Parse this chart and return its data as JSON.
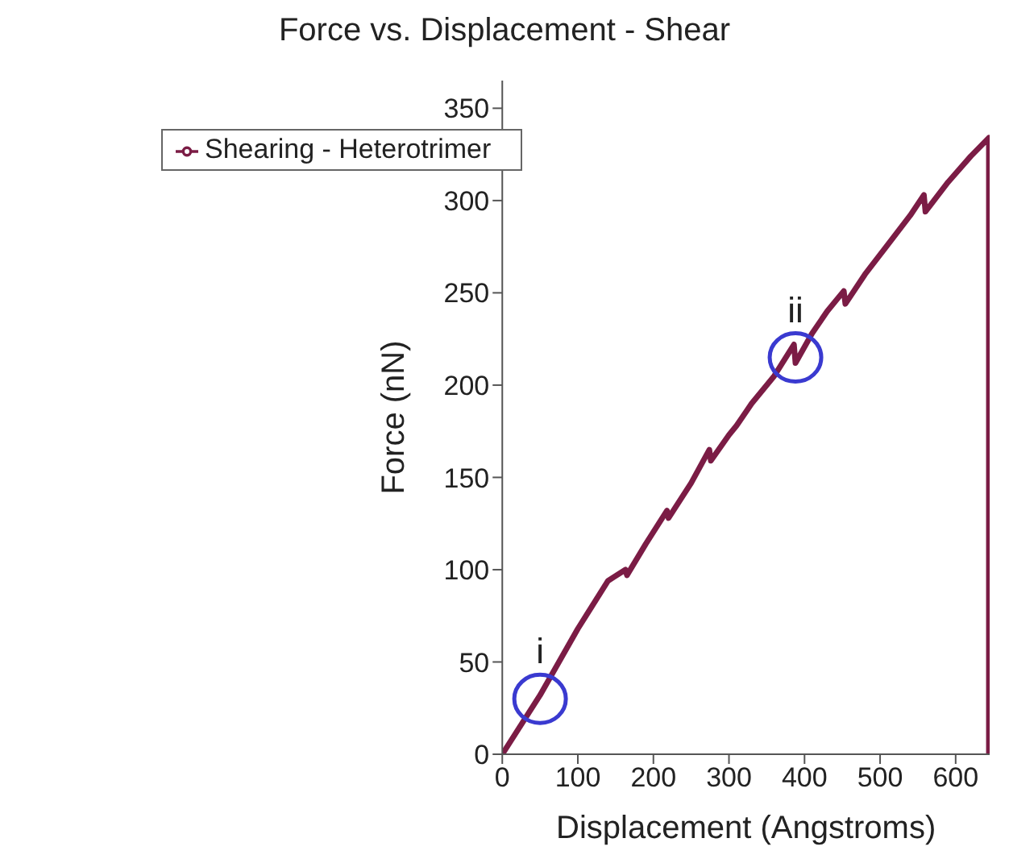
{
  "chart_data": {
    "type": "line",
    "title": "Force vs. Displacement - Shear",
    "xlabel": "Displacement (Angstroms)",
    "ylabel": "Force (nN)",
    "xlim": [
      0,
      645
    ],
    "xticks": [
      0,
      100,
      200,
      300,
      400,
      500,
      600
    ],
    "ylim": [
      0,
      365
    ],
    "yticks": [
      0,
      50,
      100,
      150,
      200,
      250,
      300,
      350
    ],
    "x": [
      0,
      50,
      100,
      140,
      163,
      165,
      190,
      218,
      220,
      250,
      274,
      276,
      300,
      310,
      330,
      360,
      386,
      388,
      410,
      430,
      452,
      454,
      480,
      510,
      540,
      558,
      560,
      590,
      620,
      644,
      644
    ],
    "series": [
      {
        "name": "Shearing - Heterotrimer",
        "color": "#7b1c45",
        "values": [
          0,
          32,
          68,
          94,
          100,
          97,
          114,
          132,
          128,
          147,
          165,
          159,
          173,
          178,
          190,
          205,
          222,
          212,
          228,
          240,
          251,
          244,
          260,
          276,
          292,
          303,
          294,
          310,
          324,
          334,
          0
        ]
      }
    ],
    "annotations": [
      {
        "text": "i",
        "x": 50,
        "y": 30
      },
      {
        "text": "ii",
        "x": 388,
        "y": 215
      }
    ],
    "legend": "top left",
    "line_style": "solid",
    "grid": false
  }
}
